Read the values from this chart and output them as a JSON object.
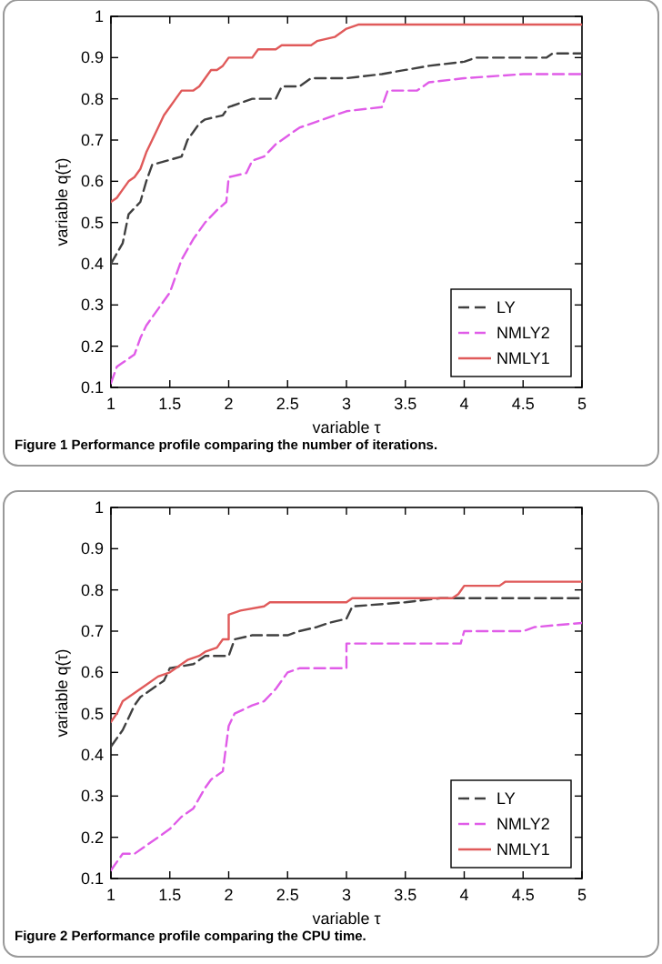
{
  "chart_data": [
    {
      "type": "line",
      "xlabel": "variable τ",
      "ylabel": "variable q(τ)",
      "xlim": [
        1,
        5
      ],
      "ylim": [
        0.1,
        1
      ],
      "xticks": [
        1,
        1.5,
        2,
        2.5,
        3,
        3.5,
        4,
        4.5,
        5
      ],
      "yticks": [
        0.1,
        0.2,
        0.3,
        0.4,
        0.5,
        0.6,
        0.7,
        0.8,
        0.9,
        1
      ],
      "legend": "bottom right",
      "grid": false,
      "annotations": [
        "Figure 1  Performance profile comparing the number of iterations."
      ],
      "series": [
        {
          "name": "LY",
          "color": "#404040",
          "line_style": "dashed",
          "x": [
            1,
            1.1,
            1.15,
            1.25,
            1.3,
            1.35,
            1.6,
            1.65,
            1.7,
            1.75,
            1.8,
            1.95,
            2,
            2.1,
            2.2,
            2.4,
            2.45,
            2.6,
            2.7,
            3,
            3.3,
            3.5,
            3.7,
            4,
            4.1,
            4.7,
            4.75,
            5
          ],
          "values": [
            0.4,
            0.45,
            0.52,
            0.55,
            0.6,
            0.64,
            0.66,
            0.7,
            0.72,
            0.74,
            0.75,
            0.76,
            0.78,
            0.79,
            0.8,
            0.8,
            0.83,
            0.83,
            0.85,
            0.85,
            0.86,
            0.87,
            0.88,
            0.89,
            0.9,
            0.9,
            0.91,
            0.91
          ]
        },
        {
          "name": "NMLY2",
          "color": "#e05ce8",
          "line_style": "dashed",
          "x": [
            1,
            1.05,
            1.1,
            1.2,
            1.25,
            1.3,
            1.4,
            1.5,
            1.55,
            1.6,
            1.7,
            1.8,
            1.9,
            1.98,
            2,
            2.15,
            2.2,
            2.3,
            2.4,
            2.5,
            2.6,
            2.8,
            3,
            3.3,
            3.35,
            3.6,
            3.7,
            4,
            4.5,
            5
          ],
          "values": [
            0.11,
            0.15,
            0.16,
            0.18,
            0.22,
            0.25,
            0.29,
            0.33,
            0.37,
            0.41,
            0.46,
            0.5,
            0.53,
            0.55,
            0.61,
            0.62,
            0.65,
            0.66,
            0.69,
            0.71,
            0.73,
            0.75,
            0.77,
            0.78,
            0.82,
            0.82,
            0.84,
            0.85,
            0.86,
            0.86
          ]
        },
        {
          "name": "NMLY1",
          "color": "#e05a5a",
          "line_style": "solid",
          "x": [
            1,
            1.05,
            1.1,
            1.15,
            1.2,
            1.25,
            1.3,
            1.35,
            1.4,
            1.45,
            1.5,
            1.55,
            1.6,
            1.7,
            1.75,
            1.8,
            1.85,
            1.9,
            1.95,
            2,
            2.2,
            2.25,
            2.4,
            2.45,
            2.7,
            2.75,
            2.9,
            3,
            3.1,
            5
          ],
          "values": [
            0.55,
            0.56,
            0.58,
            0.6,
            0.61,
            0.63,
            0.67,
            0.7,
            0.73,
            0.76,
            0.78,
            0.8,
            0.82,
            0.82,
            0.83,
            0.85,
            0.87,
            0.87,
            0.88,
            0.9,
            0.9,
            0.92,
            0.92,
            0.93,
            0.93,
            0.94,
            0.95,
            0.97,
            0.98,
            0.98
          ]
        }
      ]
    },
    {
      "type": "line",
      "xlabel": "variable τ",
      "ylabel": "variable q(τ)",
      "xlim": [
        1,
        5
      ],
      "ylim": [
        0.1,
        1
      ],
      "xticks": [
        1,
        1.5,
        2,
        2.5,
        3,
        3.5,
        4,
        4.5,
        5
      ],
      "yticks": [
        0.1,
        0.2,
        0.3,
        0.4,
        0.5,
        0.6,
        0.7,
        0.8,
        0.9,
        1
      ],
      "legend": "bottom right",
      "grid": false,
      "annotations": [
        "Figure 2  Performance profile comparing the CPU time."
      ],
      "series": [
        {
          "name": "LY",
          "color": "#404040",
          "line_style": "dashed",
          "x": [
            1,
            1.05,
            1.1,
            1.2,
            1.25,
            1.35,
            1.45,
            1.5,
            1.7,
            1.8,
            2,
            2.05,
            2.2,
            2.5,
            2.6,
            2.75,
            2.85,
            3,
            3.05,
            3.5,
            3.8,
            5
          ],
          "values": [
            0.42,
            0.44,
            0.46,
            0.52,
            0.54,
            0.56,
            0.58,
            0.61,
            0.62,
            0.64,
            0.64,
            0.68,
            0.69,
            0.69,
            0.7,
            0.71,
            0.72,
            0.73,
            0.76,
            0.77,
            0.78,
            0.78
          ]
        },
        {
          "name": "NMLY2",
          "color": "#e05ce8",
          "line_style": "dashed",
          "x": [
            1,
            1.1,
            1.2,
            1.3,
            1.4,
            1.5,
            1.6,
            1.7,
            1.8,
            1.85,
            1.95,
            2,
            2.05,
            2.2,
            2.3,
            2.4,
            2.5,
            2.6,
            3,
            3,
            3.5,
            3.97,
            4,
            4.5,
            4.6,
            5
          ],
          "values": [
            0.12,
            0.16,
            0.16,
            0.18,
            0.2,
            0.22,
            0.25,
            0.27,
            0.32,
            0.34,
            0.36,
            0.47,
            0.5,
            0.52,
            0.53,
            0.56,
            0.6,
            0.61,
            0.61,
            0.67,
            0.67,
            0.67,
            0.7,
            0.7,
            0.71,
            0.72
          ]
        },
        {
          "name": "NMLY1",
          "color": "#e05a5a",
          "line_style": "solid",
          "x": [
            1,
            1.05,
            1.1,
            1.2,
            1.3,
            1.4,
            1.5,
            1.6,
            1.65,
            1.75,
            1.8,
            1.9,
            1.95,
            2,
            2,
            2.1,
            2.3,
            2.35,
            3,
            3.05,
            3.9,
            3.95,
            4,
            4.3,
            4.35,
            5
          ],
          "values": [
            0.48,
            0.5,
            0.53,
            0.55,
            0.57,
            0.59,
            0.6,
            0.62,
            0.63,
            0.64,
            0.65,
            0.66,
            0.68,
            0.68,
            0.74,
            0.75,
            0.76,
            0.77,
            0.77,
            0.78,
            0.78,
            0.79,
            0.81,
            0.81,
            0.82,
            0.82
          ]
        }
      ]
    }
  ]
}
